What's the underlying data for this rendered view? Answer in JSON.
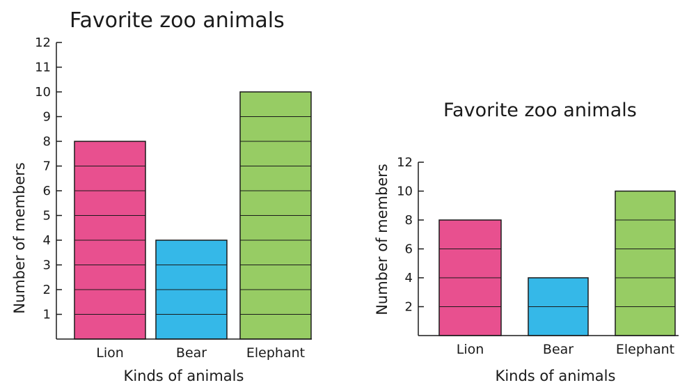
{
  "colors": {
    "lion": "#e8508f",
    "bear": "#35b8e8",
    "elephant": "#97cc64"
  },
  "chart_data": [
    {
      "type": "bar",
      "title": "Favorite zoo animals",
      "xlabel": "Kinds of animals",
      "ylabel": "Number of members",
      "categories": [
        "Lion",
        "Bear",
        "Elephant"
      ],
      "values": [
        8,
        4,
        10
      ],
      "ylim": [
        0,
        12
      ],
      "yticks": [
        1,
        2,
        3,
        4,
        5,
        6,
        7,
        8,
        9,
        10,
        11,
        12
      ],
      "ytick_labels": [
        "1",
        "2",
        "3",
        "4",
        "5",
        "6",
        "7",
        "8",
        "9",
        "10",
        "11",
        "12"
      ],
      "bar_divisions_step": 1
    },
    {
      "type": "bar",
      "title": "Favorite zoo animals",
      "xlabel": "Kinds of animals",
      "ylabel": "Number of members",
      "categories": [
        "Lion",
        "Bear",
        "Elephant"
      ],
      "values": [
        8,
        4,
        10
      ],
      "ylim": [
        0,
        12
      ],
      "yticks": [
        2,
        4,
        6,
        8,
        10,
        12
      ],
      "ytick_labels": [
        "2",
        "4",
        "6",
        "8",
        "10",
        "12"
      ],
      "bar_divisions_step": 2
    }
  ]
}
